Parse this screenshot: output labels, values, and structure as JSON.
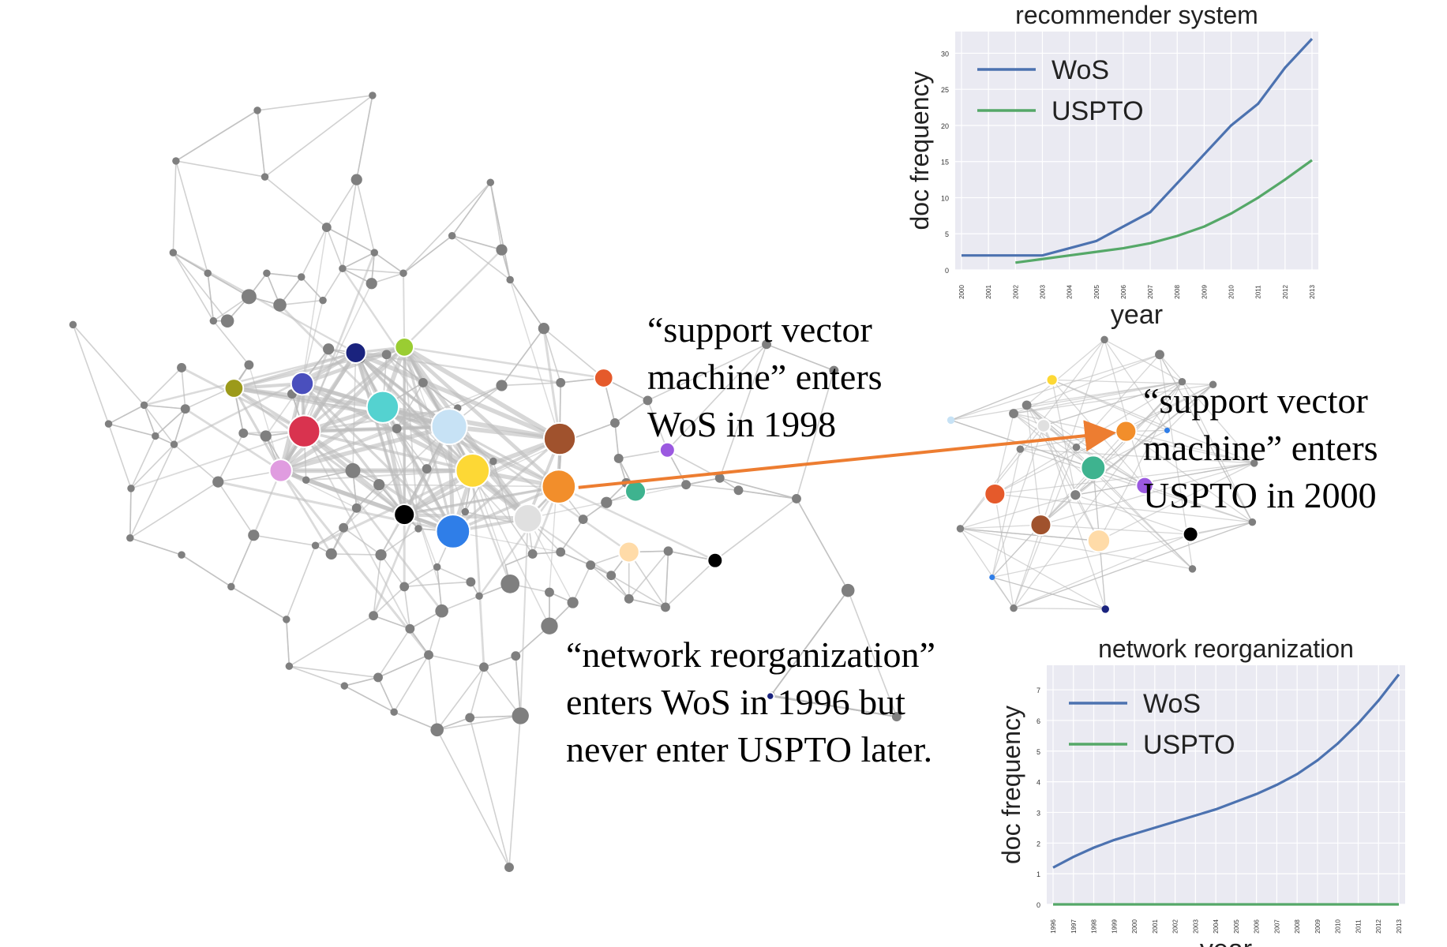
{
  "annotations": {
    "svm_wos": "“support vector\nmachine” enters\nWoS in 1998",
    "svm_uspto": "“support vector\nmachine” enters\nUSPTO in 2000",
    "network_reorg": "“network reorganization”\nenters WoS in 1996 but\nnever enter USPTO later."
  },
  "colors": {
    "edge": "#bdbdbd",
    "node": "#7f7f7f",
    "arrow": "#ed7d31",
    "wos": "#4c72b0",
    "uspto": "#55a868",
    "plot_bg": "#eaeaf2"
  },
  "chart_data": [
    {
      "type": "line",
      "title": "recommender system",
      "xlabel": "year",
      "ylabel": "doc frequency",
      "x": [
        2000,
        2001,
        2002,
        2003,
        2004,
        2005,
        2006,
        2007,
        2008,
        2009,
        2010,
        2011,
        2012,
        2013
      ],
      "ylim": [
        0,
        33
      ],
      "yticks": [
        0,
        5,
        10,
        15,
        20,
        25,
        30
      ],
      "grid": true,
      "legend": "top-left",
      "series": [
        {
          "name": "WoS",
          "x": [
            2000,
            2001,
            2002,
            2003,
            2004,
            2005,
            2006,
            2007,
            2008,
            2009,
            2010,
            2011,
            2012,
            2013
          ],
          "values": [
            2,
            2,
            2,
            2,
            3,
            4,
            6,
            8,
            12,
            16,
            20,
            23,
            28,
            32
          ]
        },
        {
          "name": "USPTO",
          "x": [
            2002,
            2003,
            2004,
            2005,
            2006,
            2007,
            2008,
            2009,
            2010,
            2011,
            2012,
            2013
          ],
          "values": [
            1,
            1.5,
            2,
            2.5,
            3,
            3.7,
            4.7,
            6,
            7.8,
            10,
            12.5,
            15.2
          ]
        }
      ]
    },
    {
      "type": "line",
      "title": "network reorganization",
      "xlabel": "year",
      "ylabel": "doc frequency",
      "x": [
        1996,
        1997,
        1998,
        1999,
        2000,
        2001,
        2002,
        2003,
        2004,
        2005,
        2006,
        2007,
        2008,
        2009,
        2010,
        2011,
        2012,
        2013
      ],
      "ylim": [
        0,
        7.8
      ],
      "yticks": [
        0,
        1,
        2,
        3,
        4,
        5,
        6,
        7
      ],
      "grid": true,
      "legend": "top-left",
      "series": [
        {
          "name": "WoS",
          "x": [
            1996,
            1997,
            1998,
            1999,
            2000,
            2001,
            2002,
            2003,
            2004,
            2005,
            2006,
            2007,
            2008,
            2009,
            2010,
            2011,
            2012,
            2013
          ],
          "values": [
            1.2,
            1.55,
            1.85,
            2.1,
            2.3,
            2.5,
            2.7,
            2.9,
            3.1,
            3.35,
            3.6,
            3.9,
            4.25,
            4.7,
            5.25,
            5.9,
            6.65,
            7.5
          ]
        },
        {
          "name": "USPTO",
          "x": [
            1996,
            1997,
            1998,
            1999,
            2000,
            2001,
            2002,
            2003,
            2004,
            2005,
            2006,
            2007,
            2008,
            2009,
            2010,
            2011,
            2012,
            2013
          ],
          "values": [
            0,
            0,
            0,
            0,
            0,
            0,
            0,
            0,
            0,
            0,
            0,
            0,
            0,
            0,
            0,
            0,
            0,
            0
          ]
        }
      ]
    }
  ]
}
